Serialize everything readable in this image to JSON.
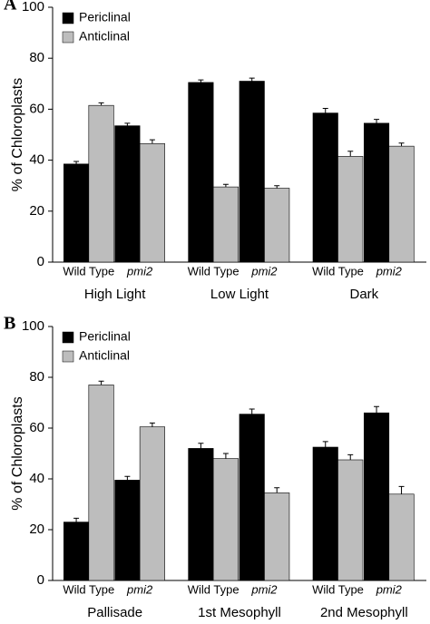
{
  "chart_data": [
    {
      "type": "bar",
      "panel": "A",
      "ylabel": "% of Chloroplasts",
      "ylim": [
        0,
        100
      ],
      "yticks": [
        0,
        20,
        40,
        60,
        80,
        100
      ],
      "groups": [
        "High Light",
        "Low Light",
        "Dark"
      ],
      "categories": [
        "Wild Type",
        "pmi2",
        "Wild Type",
        "pmi2",
        "Wild Type",
        "pmi2"
      ],
      "legend": "upper left",
      "series": [
        {
          "name": "Periclinal",
          "color": "#000000",
          "values": [
            38.5,
            53.5,
            70.5,
            71,
            58.5,
            54.5
          ],
          "errors": [
            1,
            1,
            1,
            1.2,
            1.8,
            1.5
          ]
        },
        {
          "name": "Anticlinal",
          "color": "#bdbdbd",
          "values": [
            61.5,
            46.5,
            29.5,
            29,
            41.5,
            45.5
          ],
          "errors": [
            1,
            1.5,
            1,
            1,
            2,
            1.2
          ]
        }
      ]
    },
    {
      "type": "bar",
      "panel": "B",
      "ylabel": "% of Chloroplasts",
      "ylim": [
        0,
        100
      ],
      "yticks": [
        0,
        20,
        40,
        60,
        80,
        100
      ],
      "groups": [
        "Pallisade",
        "1st Mesophyll",
        "2nd Mesophyll"
      ],
      "categories": [
        "Wild Type",
        "pmi2",
        "Wild Type",
        "pmi2",
        "Wild Type",
        "pmi2"
      ],
      "legend": "upper left",
      "series": [
        {
          "name": "Periclinal",
          "color": "#000000",
          "values": [
            23,
            39.5,
            52,
            65.5,
            52.5,
            66
          ],
          "errors": [
            1.5,
            1.5,
            2,
            2,
            2.2,
            2.5
          ]
        },
        {
          "name": "Anticlinal",
          "color": "#bdbdbd",
          "values": [
            77,
            60.5,
            48,
            34.5,
            47.5,
            34
          ],
          "errors": [
            1.5,
            1.5,
            2,
            2,
            2,
            3
          ]
        }
      ]
    }
  ]
}
